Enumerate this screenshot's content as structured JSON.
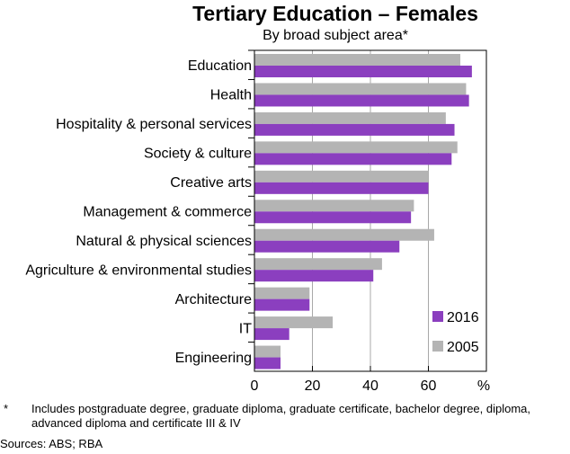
{
  "chart_data": {
    "type": "bar",
    "orientation": "horizontal",
    "title": "Tertiary Education – Females",
    "subtitle": "By broad subject area*",
    "xunit": "%",
    "xlim": [
      0,
      80
    ],
    "xticks": [
      0,
      20,
      40,
      60
    ],
    "grid": true,
    "legend_position": "bottom-right",
    "categories": [
      "Education",
      "Health",
      "Hospitality & personal services",
      "Society & culture",
      "Creative arts",
      "Management & commerce",
      "Natural & physical sciences",
      "Agriculture & environmental studies",
      "Architecture",
      "IT",
      "Engineering"
    ],
    "series": [
      {
        "name": "2005",
        "color": "#b4b4b4",
        "values": [
          71,
          73,
          66,
          70,
          60,
          55,
          62,
          44,
          19,
          27,
          9
        ]
      },
      {
        "name": "2016",
        "color": "#8b3fbf",
        "values": [
          75,
          74,
          69,
          68,
          60,
          54,
          50,
          41,
          19,
          12,
          9
        ]
      }
    ]
  },
  "footnote": {
    "marker": "*",
    "text": "Includes postgraduate degree, graduate diploma, graduate certificate, bachelor degree, diploma, advanced diploma and certificate III & IV"
  },
  "sources": "Sources:   ABS; RBA"
}
